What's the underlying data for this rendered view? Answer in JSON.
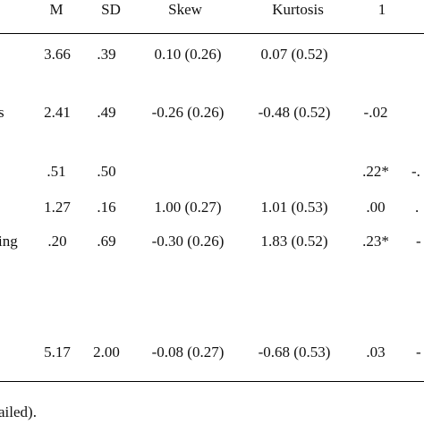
{
  "header": {
    "m": "M",
    "sd": "SD",
    "skew": "Skew",
    "kurtosis": "Kurtosis",
    "c1": "1"
  },
  "rows": [
    {
      "label": "",
      "m": "3.66",
      "sd": ".39",
      "skew": "0.10 (0.26)",
      "kurtosis": "0.07 (0.52)",
      "c1": "",
      "c2": ""
    },
    {
      "label": "s",
      "m": "2.41",
      "sd": ".49",
      "skew": "-0.26 (0.26)",
      "kurtosis": "-0.48 (0.52)",
      "c1": "-.02",
      "c2": ""
    },
    {
      "label": "",
      "m": ".51",
      "sd": ".50",
      "skew": "",
      "kurtosis": "",
      "c1": ".22*",
      "c2": "-."
    },
    {
      "label": "",
      "m": "1.27",
      "sd": ".16",
      "skew": "1.00 (0.27)",
      "kurtosis": "1.01 (0.53)",
      "c1": ".00",
      "c2": "."
    },
    {
      "label": "ing",
      "m": ".20",
      "sd": ".69",
      "skew": "-0.30 (0.26)",
      "kurtosis": "1.83 (0.52)",
      "c1": ".23*",
      "c2": "-"
    },
    {
      "label": "",
      "m": "5.17",
      "sd": "2.00",
      "skew": "-0.08 (0.27)",
      "kurtosis": "-0.68 (0.53)",
      "c1": ".03",
      "c2": "-"
    }
  ],
  "note": "ailed)."
}
